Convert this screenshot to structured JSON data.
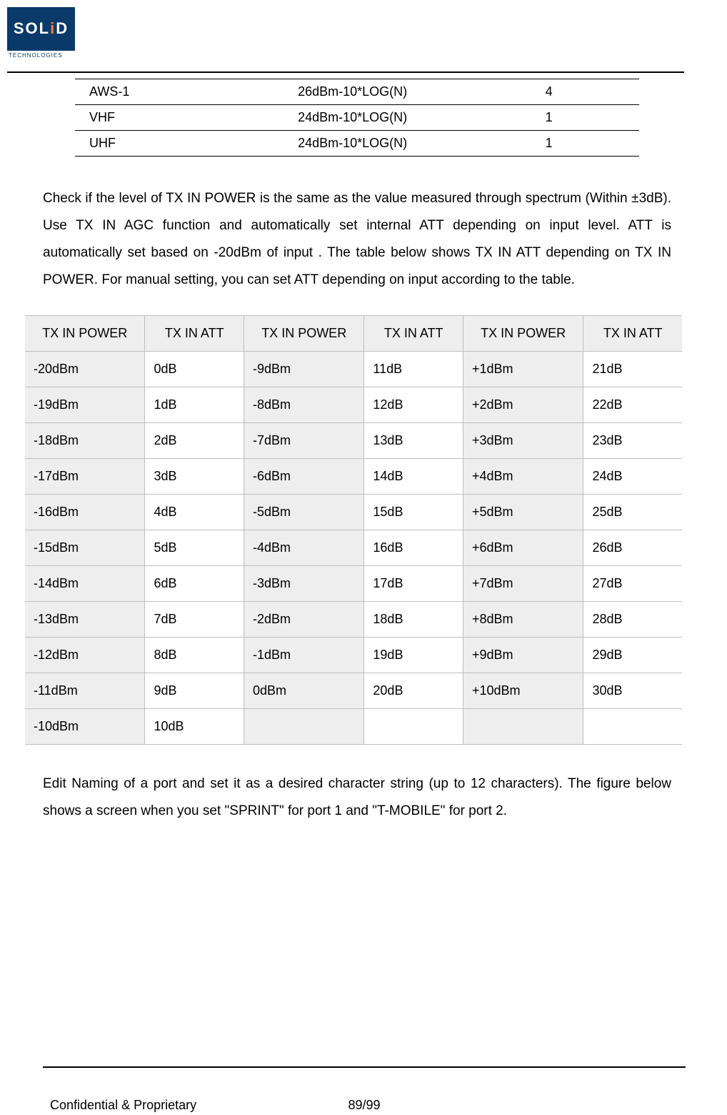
{
  "logo": {
    "text": "SOLiD",
    "sub": "TECHNOLOGIES"
  },
  "small_table": {
    "rows": [
      {
        "c1": "AWS-1",
        "c2": "26dBm-10*LOG(N)",
        "c3": "4"
      },
      {
        "c1": "VHF",
        "c2": "24dBm-10*LOG(N)",
        "c3": "1"
      },
      {
        "c1": "UHF",
        "c2": "24dBm-10*LOG(N)",
        "c3": "1"
      }
    ]
  },
  "paragraph1": "Check if the level of TX IN POWER is the same as the value measured through spectrum (Within ±3dB). Use TX IN AGC function and automatically set internal ATT depending on input level. ATT is automatically set based on -20dBm of input . The table below shows TX IN ATT depending on TX IN POWER. For manual setting, you can set ATT depending on input according to the table.",
  "big_table": {
    "headers": [
      "TX IN POWER",
      "TX IN ATT",
      "TX IN POWER",
      "TX IN ATT",
      "TX IN POWER",
      "TX IN ATT"
    ],
    "rows": [
      [
        "-20dBm",
        "0dB",
        "-9dBm",
        "11dB",
        "+1dBm",
        "21dB"
      ],
      [
        "-19dBm",
        "1dB",
        "-8dBm",
        "12dB",
        "+2dBm",
        "22dB"
      ],
      [
        "-18dBm",
        "2dB",
        "-7dBm",
        "13dB",
        "+3dBm",
        "23dB"
      ],
      [
        "-17dBm",
        "3dB",
        "-6dBm",
        "14dB",
        "+4dBm",
        "24dB"
      ],
      [
        "-16dBm",
        "4dB",
        "-5dBm",
        "15dB",
        "+5dBm",
        "25dB"
      ],
      [
        "-15dBm",
        "5dB",
        "-4dBm",
        "16dB",
        "+6dBm",
        "26dB"
      ],
      [
        "-14dBm",
        "6dB",
        "-3dBm",
        "17dB",
        "+7dBm",
        "27dB"
      ],
      [
        "-13dBm",
        "7dB",
        "-2dBm",
        "18dB",
        "+8dBm",
        "28dB"
      ],
      [
        "-12dBm",
        "8dB",
        "-1dBm",
        "19dB",
        "+9dBm",
        "29dB"
      ],
      [
        "-11dBm",
        "9dB",
        "0dBm",
        "20dB",
        "+10dBm",
        "30dB"
      ],
      [
        "-10dBm",
        "10dB",
        "",
        "",
        "",
        ""
      ]
    ],
    "shaded_cols": [
      0,
      2,
      4
    ],
    "header_bg": "#eeeeee",
    "shade_bg": "#eeeeee",
    "border_color": "#bfbfbf",
    "fontsize": 18
  },
  "paragraph2": "Edit Naming of a port and set it as a desired character string (up to 12 characters). The figure below shows a screen when you set \"SPRINT\" for port 1 and \"T-MOBILE\" for port 2.",
  "footer": {
    "left": "Confidential & Proprietary",
    "page": "89/99"
  }
}
